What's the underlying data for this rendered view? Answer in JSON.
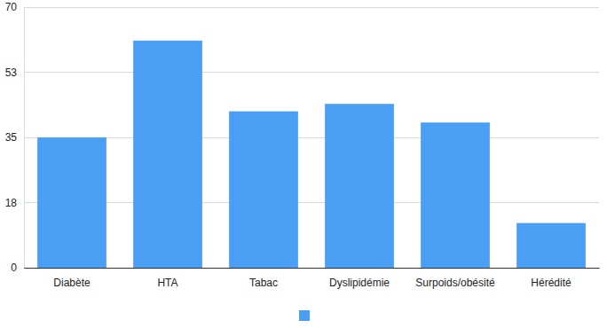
{
  "chart_data": {
    "type": "bar",
    "categories": [
      "Diabète",
      "HTA",
      "Tabac",
      "Dyslipidémie",
      "Surpoids/obésité",
      "Hérédité"
    ],
    "values": [
      35,
      61,
      42,
      44,
      39,
      12
    ],
    "color": "#4a9ff5",
    "ylim": [
      0,
      70
    ],
    "yticks": [
      0,
      {
        "value": 17.5,
        "label": "18"
      },
      35,
      {
        "value": 52.5,
        "label": "53"
      },
      70
    ],
    "grid": true,
    "legend": "bottom"
  }
}
